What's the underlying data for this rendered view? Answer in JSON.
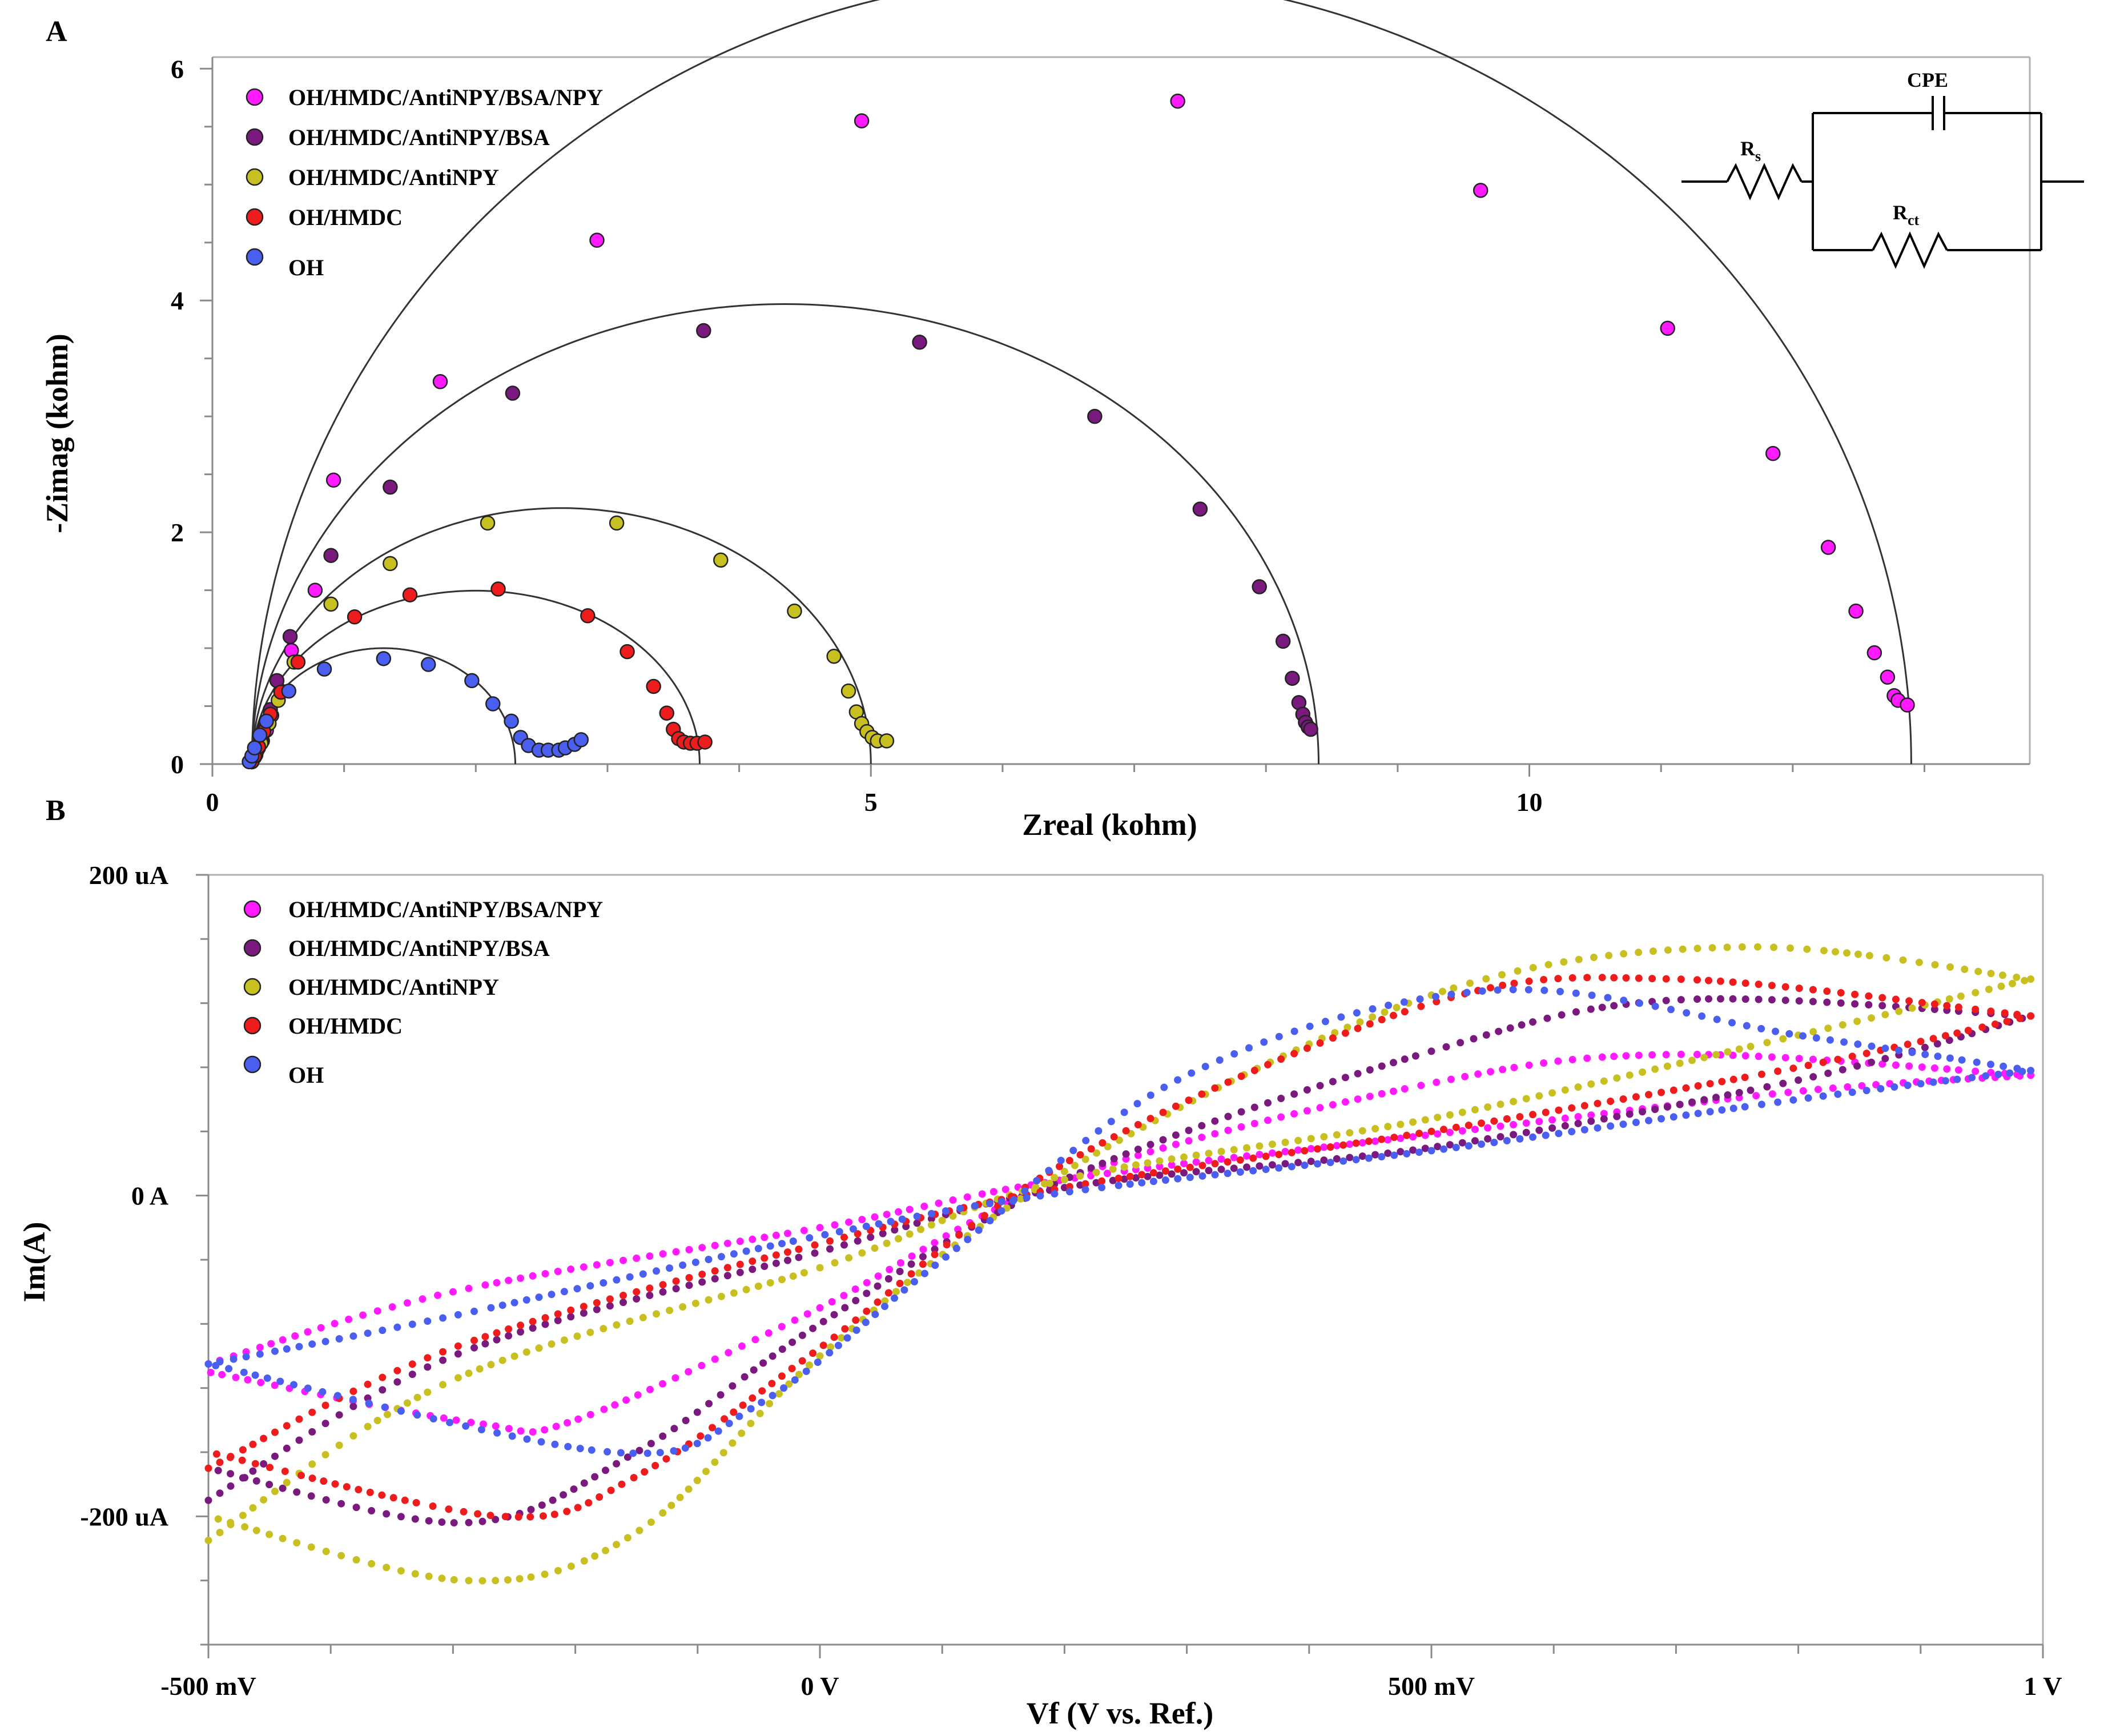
{
  "panels": {
    "a_label": "A",
    "b_label": "B"
  },
  "circuit": {
    "cpe": "CPE",
    "rs_main": "R",
    "rs_sub": "s",
    "rct_main": "R",
    "rct_sub": "ct"
  },
  "colors": {
    "OH/HMDC/AntiNPY/BSA/NPY": "#ff1aff",
    "OH/HMDC/AntiNPY/BSA": "#7a1a7e",
    "OH/HMDC/AntiNPY": "#c8c020",
    "OH/HMDC": "#ee1c1c",
    "OH": "#4a5ff0"
  },
  "chart_data": [
    {
      "type": "scatter",
      "panel": "A",
      "title": "",
      "xlabel": "Zreal (kohm)",
      "ylabel": "-Zimag (kohm)",
      "xlim": [
        0,
        13.8
      ],
      "ylim": [
        0,
        6.1
      ],
      "xticks": [
        0,
        5,
        10
      ],
      "xtick_labels": [
        "0",
        "5",
        "10"
      ],
      "yticks": [
        0,
        2,
        4,
        6
      ],
      "ytick_labels": [
        "0",
        "2",
        "4",
        "6"
      ],
      "legend": [
        "OH/HMDC/AntiNPY/BSA/NPY",
        "OH/HMDC/AntiNPY/BSA",
        "OH/HMDC/AntiNPY",
        "OH/HMDC",
        "OH"
      ],
      "legend_position": "top-left",
      "fit_line": true,
      "series": [
        {
          "name": "OH/HMDC/AntiNPY/BSA/NPY",
          "rs": 0.3,
          "rct": 12.6,
          "depression": 0.54,
          "points": [
            [
              0.3,
              0.02
            ],
            [
              0.31,
              0.05
            ],
            [
              0.33,
              0.09
            ],
            [
              0.35,
              0.14
            ],
            [
              0.38,
              0.2
            ],
            [
              0.41,
              0.29
            ],
            [
              0.45,
              0.42
            ],
            [
              0.52,
              0.63
            ],
            [
              0.6,
              0.98
            ],
            [
              0.78,
              1.5
            ],
            [
              0.92,
              2.45
            ],
            [
              1.73,
              3.3
            ],
            [
              2.92,
              4.52
            ],
            [
              4.93,
              5.55
            ],
            [
              7.33,
              5.72
            ],
            [
              9.63,
              4.95
            ],
            [
              11.05,
              3.76
            ],
            [
              11.85,
              2.68
            ],
            [
              12.27,
              1.87
            ],
            [
              12.48,
              1.32
            ],
            [
              12.62,
              0.96
            ],
            [
              12.72,
              0.75
            ],
            [
              12.77,
              0.59
            ],
            [
              12.8,
              0.55
            ],
            [
              12.87,
              0.51
            ]
          ]
        },
        {
          "name": "OH/HMDC/AntiNPY/BSA",
          "rs": 0.3,
          "rct": 8.1,
          "depression": 0.49,
          "points": [
            [
              0.3,
              0.02
            ],
            [
              0.32,
              0.06
            ],
            [
              0.34,
              0.12
            ],
            [
              0.37,
              0.21
            ],
            [
              0.4,
              0.32
            ],
            [
              0.44,
              0.47
            ],
            [
              0.49,
              0.72
            ],
            [
              0.59,
              1.1
            ],
            [
              0.9,
              1.8
            ],
            [
              1.35,
              2.39
            ],
            [
              2.28,
              3.2
            ],
            [
              3.73,
              3.74
            ],
            [
              5.37,
              3.64
            ],
            [
              6.7,
              3.0
            ],
            [
              7.5,
              2.2
            ],
            [
              7.95,
              1.53
            ],
            [
              8.13,
              1.06
            ],
            [
              8.2,
              0.74
            ],
            [
              8.25,
              0.53
            ],
            [
              8.28,
              0.43
            ],
            [
              8.3,
              0.36
            ],
            [
              8.32,
              0.32
            ],
            [
              8.34,
              0.3
            ]
          ]
        },
        {
          "name": "OH/HMDC/AntiNPY",
          "rs": 0.3,
          "rct": 4.7,
          "depression": 0.47,
          "points": [
            [
              0.3,
              0.02
            ],
            [
              0.33,
              0.08
            ],
            [
              0.37,
              0.18
            ],
            [
              0.43,
              0.35
            ],
            [
              0.5,
              0.55
            ],
            [
              0.62,
              0.88
            ],
            [
              0.9,
              1.38
            ],
            [
              1.35,
              1.73
            ],
            [
              2.09,
              2.08
            ],
            [
              3.07,
              2.08
            ],
            [
              3.86,
              1.76
            ],
            [
              4.42,
              1.32
            ],
            [
              4.72,
              0.93
            ],
            [
              4.83,
              0.63
            ],
            [
              4.89,
              0.45
            ],
            [
              4.93,
              0.35
            ],
            [
              4.97,
              0.28
            ],
            [
              5.01,
              0.23
            ],
            [
              5.05,
              0.2
            ],
            [
              5.12,
              0.2
            ]
          ]
        },
        {
          "name": "OH/HMDC",
          "rs": 0.3,
          "rct": 3.4,
          "depression": 0.44,
          "points": [
            [
              0.3,
              0.02
            ],
            [
              0.32,
              0.07
            ],
            [
              0.35,
              0.15
            ],
            [
              0.39,
              0.28
            ],
            [
              0.44,
              0.43
            ],
            [
              0.52,
              0.62
            ],
            [
              0.65,
              0.88
            ],
            [
              1.08,
              1.27
            ],
            [
              1.5,
              1.46
            ],
            [
              2.17,
              1.51
            ],
            [
              2.85,
              1.28
            ],
            [
              3.15,
              0.97
            ],
            [
              3.35,
              0.67
            ],
            [
              3.45,
              0.44
            ],
            [
              3.5,
              0.3
            ],
            [
              3.54,
              0.22
            ],
            [
              3.58,
              0.19
            ],
            [
              3.63,
              0.18
            ],
            [
              3.68,
              0.18
            ],
            [
              3.74,
              0.19
            ]
          ]
        },
        {
          "name": "OH",
          "rs": 0.3,
          "rct": 2.0,
          "depression": 0.5,
          "points": [
            [
              0.28,
              0.02
            ],
            [
              0.3,
              0.07
            ],
            [
              0.32,
              0.14
            ],
            [
              0.36,
              0.25
            ],
            [
              0.41,
              0.37
            ],
            [
              0.58,
              0.63
            ],
            [
              0.85,
              0.82
            ],
            [
              1.3,
              0.91
            ],
            [
              1.64,
              0.86
            ],
            [
              1.97,
              0.72
            ],
            [
              2.13,
              0.52
            ],
            [
              2.27,
              0.37
            ],
            [
              2.34,
              0.23
            ],
            [
              2.4,
              0.16
            ],
            [
              2.48,
              0.12
            ],
            [
              2.55,
              0.12
            ],
            [
              2.63,
              0.12
            ],
            [
              2.68,
              0.14
            ],
            [
              2.75,
              0.17
            ],
            [
              2.8,
              0.21
            ]
          ]
        }
      ]
    },
    {
      "type": "line",
      "panel": "B",
      "title": "",
      "xlabel": "Vf (V vs. Ref.)",
      "ylabel": "Im(A)",
      "xlim": [
        -0.5,
        1.0
      ],
      "ylim": [
        -280,
        200
      ],
      "xticks": [
        -0.5,
        0,
        0.5,
        1.0
      ],
      "xtick_labels": [
        "-500 mV",
        "0 V",
        "500 mV",
        "1 V"
      ],
      "yticks": [
        200,
        0,
        -200
      ],
      "ytick_labels": [
        "200 uA",
        "0 A",
        "-200 uA"
      ],
      "legend": [
        "OH/HMDC/AntiNPY/BSA/NPY",
        "OH/HMDC/AntiNPY/BSA",
        "OH/HMDC/AntiNPY",
        "OH/HMDC",
        "OH"
      ],
      "legend_position": "top-left",
      "marker": "dot",
      "series": [
        {
          "name": "OH/HMDC/AntiNPY/BSA/NPY",
          "forward": [
            [
              -0.5,
              -105
            ],
            [
              -0.3,
              -60
            ],
            [
              0,
              -20
            ],
            [
              0.2,
              10
            ],
            [
              0.5,
              38
            ],
            [
              0.8,
              65
            ],
            [
              0.99,
              75
            ]
          ],
          "reverse": [
            [
              0.99,
              75
            ],
            [
              0.7,
              88
            ],
            [
              0.5,
              70
            ],
            [
              0.2,
              10
            ],
            [
              0,
              -70
            ],
            [
              -0.2,
              -140
            ],
            [
              -0.28,
              -142
            ],
            [
              -0.5,
              -110
            ]
          ]
        },
        {
          "name": "OH/HMDC/AntiNPY/BSA",
          "forward": [
            [
              -0.5,
              -190
            ],
            [
              -0.3,
              -100
            ],
            [
              0,
              -35
            ],
            [
              0.2,
              5
            ],
            [
              0.5,
              30
            ],
            [
              0.8,
              72
            ],
            [
              0.99,
              112
            ]
          ],
          "reverse": [
            [
              0.99,
              112
            ],
            [
              0.7,
              122
            ],
            [
              0.5,
              90
            ],
            [
              0.2,
              10
            ],
            [
              0,
              -80
            ],
            [
              -0.15,
              -160
            ],
            [
              -0.29,
              -204
            ],
            [
              -0.5,
              -170
            ]
          ]
        },
        {
          "name": "OH/HMDC/AntiNPY",
          "forward": [
            [
              -0.5,
              -215
            ],
            [
              -0.3,
              -115
            ],
            [
              0,
              -45
            ],
            [
              0.2,
              10
            ],
            [
              0.5,
              48
            ],
            [
              0.8,
              100
            ],
            [
              0.99,
              135
            ]
          ],
          "reverse": [
            [
              0.99,
              135
            ],
            [
              0.75,
              155
            ],
            [
              0.5,
              125
            ],
            [
              0.2,
              15
            ],
            [
              0,
              -100
            ],
            [
              -0.15,
              -210
            ],
            [
              -0.29,
              -240
            ],
            [
              -0.5,
              -200
            ]
          ]
        },
        {
          "name": "OH/HMDC",
          "forward": [
            [
              -0.5,
              -170
            ],
            [
              -0.3,
              -95
            ],
            [
              0,
              -30
            ],
            [
              0.2,
              5
            ],
            [
              0.5,
              40
            ],
            [
              0.8,
              80
            ],
            [
              0.99,
              112
            ]
          ],
          "reverse": [
            [
              0.99,
              112
            ],
            [
              0.7,
              135
            ],
            [
              0.5,
              120
            ],
            [
              0.2,
              20
            ],
            [
              0,
              -95
            ],
            [
              -0.15,
              -175
            ],
            [
              -0.26,
              -200
            ],
            [
              -0.5,
              -160
            ]
          ]
        },
        {
          "name": "OH",
          "forward": [
            [
              -0.5,
              -105
            ],
            [
              -0.3,
              -75
            ],
            [
              0,
              -25
            ],
            [
              0.2,
              2
            ],
            [
              0.5,
              28
            ],
            [
              0.8,
              60
            ],
            [
              0.99,
              78
            ]
          ],
          "reverse": [
            [
              0.99,
              78
            ],
            [
              0.8,
              100
            ],
            [
              0.55,
              128
            ],
            [
              0.3,
              75
            ],
            [
              0.1,
              -40
            ],
            [
              -0.05,
              -130
            ],
            [
              -0.17,
              -160
            ],
            [
              -0.5,
              -105
            ]
          ]
        }
      ]
    }
  ]
}
